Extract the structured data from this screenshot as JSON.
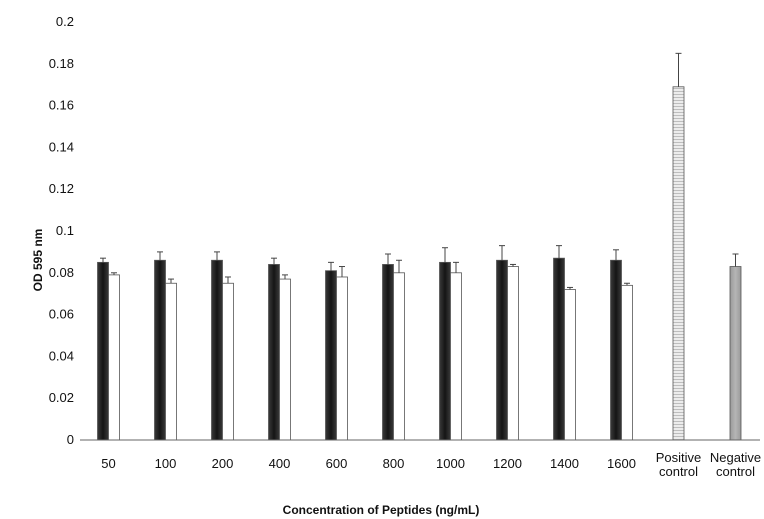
{
  "chart_data": {
    "type": "bar",
    "title": "",
    "xlabel": "Concentration of Peptides (ng/mL)",
    "ylabel": "OD 595 nm",
    "ylim": [
      0,
      0.2
    ],
    "yticks": [
      "0",
      "0.02",
      "0.04",
      "0.06",
      "0.08",
      "0.1",
      "0.12",
      "0.14",
      "0.16",
      "0.18",
      "0.2"
    ],
    "grid": false,
    "legend": "none",
    "categories": [
      [
        "50"
      ],
      [
        "100"
      ],
      [
        "200"
      ],
      [
        "400"
      ],
      [
        "600"
      ],
      [
        "800"
      ],
      [
        "1000"
      ],
      [
        "1200"
      ],
      [
        "1400"
      ],
      [
        "1600"
      ],
      [
        "Positive",
        "control"
      ],
      [
        "Negative",
        "control"
      ]
    ],
    "series": [
      {
        "color": "#2b2b2b",
        "values": [
          0.085,
          0.086,
          0.086,
          0.084,
          0.081,
          0.084,
          0.085,
          0.086,
          0.087,
          0.086,
          null,
          null
        ],
        "errors": [
          0.002,
          0.004,
          0.004,
          0.003,
          0.004,
          0.005,
          0.007,
          0.007,
          0.006,
          0.005,
          null,
          null
        ]
      },
      {
        "color": "#ffffff",
        "values": [
          0.079,
          0.075,
          0.075,
          0.077,
          0.078,
          0.08,
          0.08,
          0.083,
          0.072,
          0.074,
          null,
          null
        ],
        "errors": [
          0.001,
          0.002,
          0.003,
          0.002,
          0.005,
          0.006,
          0.005,
          0.001,
          0.001,
          0.001,
          null,
          null
        ]
      },
      {
        "color": "#e6e6e6",
        "values": [
          null,
          null,
          null,
          null,
          null,
          null,
          null,
          null,
          null,
          null,
          0.169,
          null
        ],
        "errors": [
          null,
          null,
          null,
          null,
          null,
          null,
          null,
          null,
          null,
          null,
          0.016,
          null
        ]
      },
      {
        "color": "#a9a9a9",
        "values": [
          null,
          null,
          null,
          null,
          null,
          null,
          null,
          null,
          null,
          null,
          null,
          0.083
        ],
        "errors": [
          null,
          null,
          null,
          null,
          null,
          null,
          null,
          null,
          null,
          null,
          null,
          0.006
        ]
      }
    ]
  }
}
